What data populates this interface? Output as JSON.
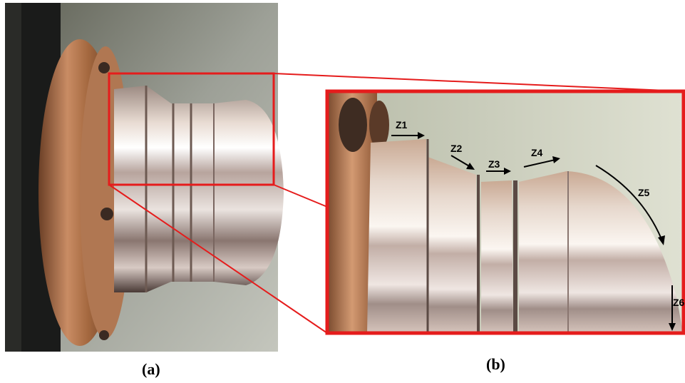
{
  "captions": {
    "a": "(a)",
    "b": "(b)"
  },
  "zone_labels": [
    "Z1",
    "Z2",
    "Z3",
    "Z4",
    "Z5",
    "Z6"
  ],
  "colors": {
    "highlight": "#e51c1c",
    "arrow": "#000000",
    "background": "#ffffff"
  }
}
